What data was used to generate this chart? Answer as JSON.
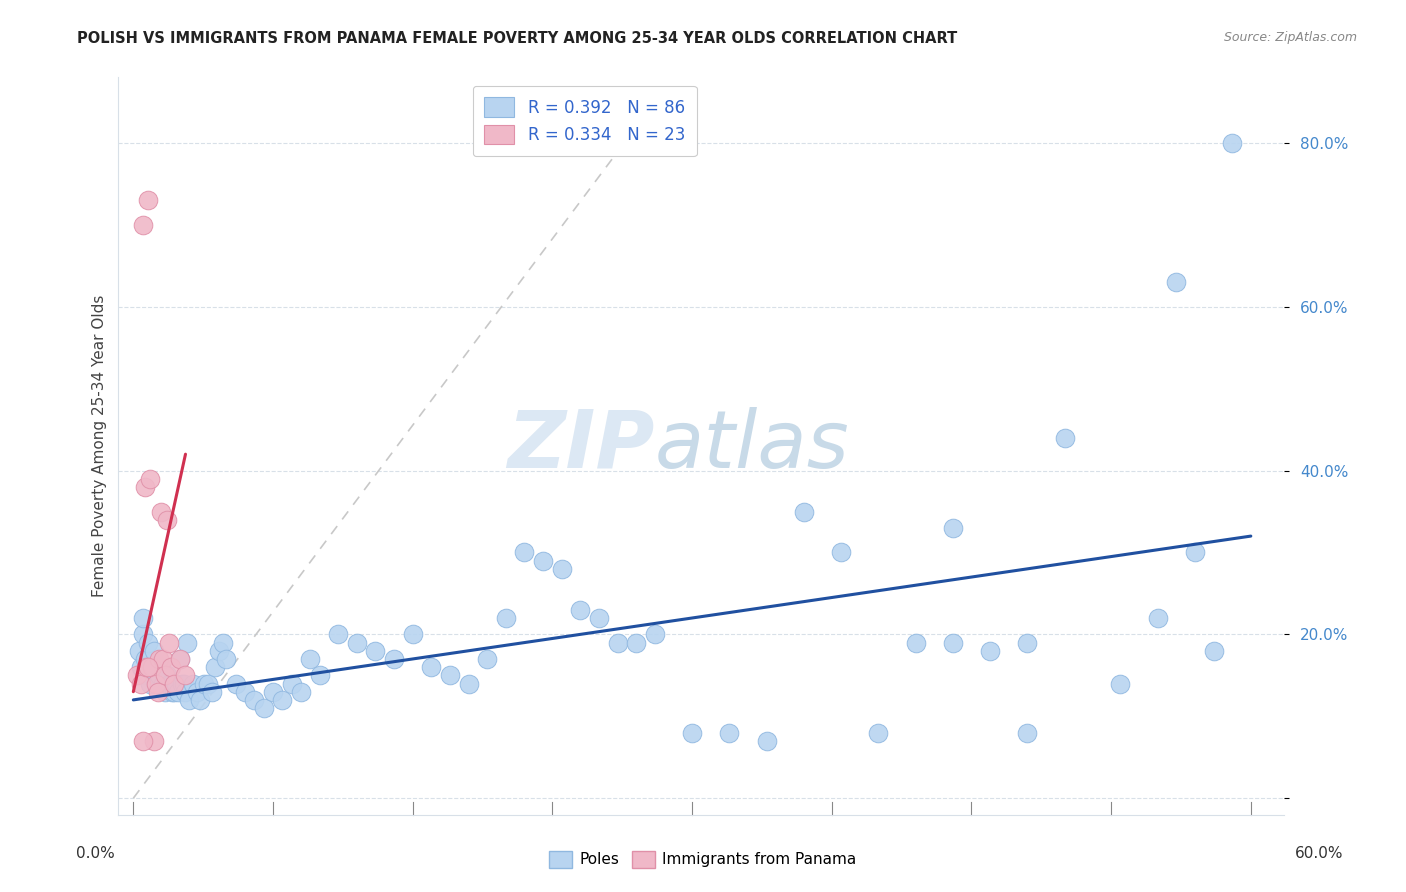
{
  "title": "POLISH VS IMMIGRANTS FROM PANAMA FEMALE POVERTY AMONG 25-34 YEAR OLDS CORRELATION CHART",
  "source": "Source: ZipAtlas.com",
  "ylabel": "Female Poverty Among 25-34 Year Olds",
  "watermark_zip": "ZIP",
  "watermark_atlas": "atlas",
  "blue_color": "#b8d4f0",
  "blue_edge_color": "#90b8e0",
  "pink_color": "#f0b8c8",
  "pink_edge_color": "#e090a8",
  "blue_line_color": "#2050a0",
  "pink_line_color": "#d03050",
  "dash_color": "#c8c8c8",
  "grid_color": "#d8e0e8",
  "ytick_color": "#4488cc",
  "title_color": "#222222",
  "source_color": "#888888",
  "ylabel_color": "#444444",
  "legend_text_color": "#3366cc",
  "xlim": [
    0.0,
    0.6
  ],
  "ylim": [
    0.0,
    0.85
  ],
  "ytick_positions": [
    0.0,
    0.2,
    0.4,
    0.6,
    0.8
  ],
  "ytick_labels": [
    "",
    "20.0%",
    "40.0%",
    "60.0%",
    "80.0%"
  ],
  "poles_x": [
    0.003,
    0.004,
    0.005,
    0.005,
    0.006,
    0.007,
    0.008,
    0.009,
    0.01,
    0.011,
    0.012,
    0.013,
    0.014,
    0.015,
    0.016,
    0.017,
    0.018,
    0.019,
    0.02,
    0.021,
    0.022,
    0.023,
    0.024,
    0.025,
    0.026,
    0.027,
    0.028,
    0.029,
    0.03,
    0.032,
    0.034,
    0.036,
    0.038,
    0.04,
    0.042,
    0.044,
    0.046,
    0.048,
    0.05,
    0.055,
    0.06,
    0.065,
    0.07,
    0.075,
    0.08,
    0.085,
    0.09,
    0.095,
    0.1,
    0.11,
    0.12,
    0.13,
    0.14,
    0.15,
    0.16,
    0.17,
    0.18,
    0.19,
    0.2,
    0.21,
    0.22,
    0.23,
    0.24,
    0.25,
    0.26,
    0.27,
    0.28,
    0.3,
    0.32,
    0.34,
    0.36,
    0.38,
    0.4,
    0.42,
    0.44,
    0.46,
    0.48,
    0.5,
    0.53,
    0.55,
    0.56,
    0.57,
    0.58,
    0.59,
    0.44,
    0.48
  ],
  "poles_y": [
    0.18,
    0.16,
    0.2,
    0.22,
    0.17,
    0.15,
    0.19,
    0.14,
    0.16,
    0.18,
    0.15,
    0.14,
    0.15,
    0.16,
    0.14,
    0.13,
    0.15,
    0.14,
    0.14,
    0.13,
    0.13,
    0.14,
    0.13,
    0.17,
    0.14,
    0.14,
    0.13,
    0.19,
    0.12,
    0.14,
    0.13,
    0.12,
    0.14,
    0.14,
    0.13,
    0.16,
    0.18,
    0.19,
    0.17,
    0.14,
    0.13,
    0.12,
    0.11,
    0.13,
    0.12,
    0.14,
    0.13,
    0.17,
    0.15,
    0.2,
    0.19,
    0.18,
    0.17,
    0.2,
    0.16,
    0.15,
    0.14,
    0.17,
    0.22,
    0.3,
    0.29,
    0.28,
    0.23,
    0.22,
    0.19,
    0.19,
    0.2,
    0.08,
    0.08,
    0.07,
    0.35,
    0.3,
    0.08,
    0.19,
    0.19,
    0.18,
    0.08,
    0.44,
    0.14,
    0.22,
    0.63,
    0.3,
    0.18,
    0.8,
    0.33,
    0.19
  ],
  "panama_x": [
    0.002,
    0.004,
    0.005,
    0.006,
    0.007,
    0.008,
    0.009,
    0.01,
    0.011,
    0.012,
    0.013,
    0.014,
    0.015,
    0.016,
    0.017,
    0.018,
    0.019,
    0.02,
    0.022,
    0.025,
    0.028,
    0.005,
    0.008
  ],
  "panama_y": [
    0.15,
    0.14,
    0.7,
    0.38,
    0.16,
    0.73,
    0.39,
    0.16,
    0.07,
    0.14,
    0.13,
    0.17,
    0.35,
    0.17,
    0.15,
    0.34,
    0.19,
    0.16,
    0.14,
    0.17,
    0.15,
    0.07,
    0.16
  ],
  "blue_trendline_x": [
    0.0,
    0.6
  ],
  "blue_trendline_y": [
    0.12,
    0.32
  ],
  "pink_trendline_x": [
    0.0,
    0.028
  ],
  "pink_trendline_y": [
    0.13,
    0.42
  ],
  "dash_line_x": [
    0.0,
    0.28
  ],
  "dash_line_y": [
    0.0,
    0.85
  ]
}
